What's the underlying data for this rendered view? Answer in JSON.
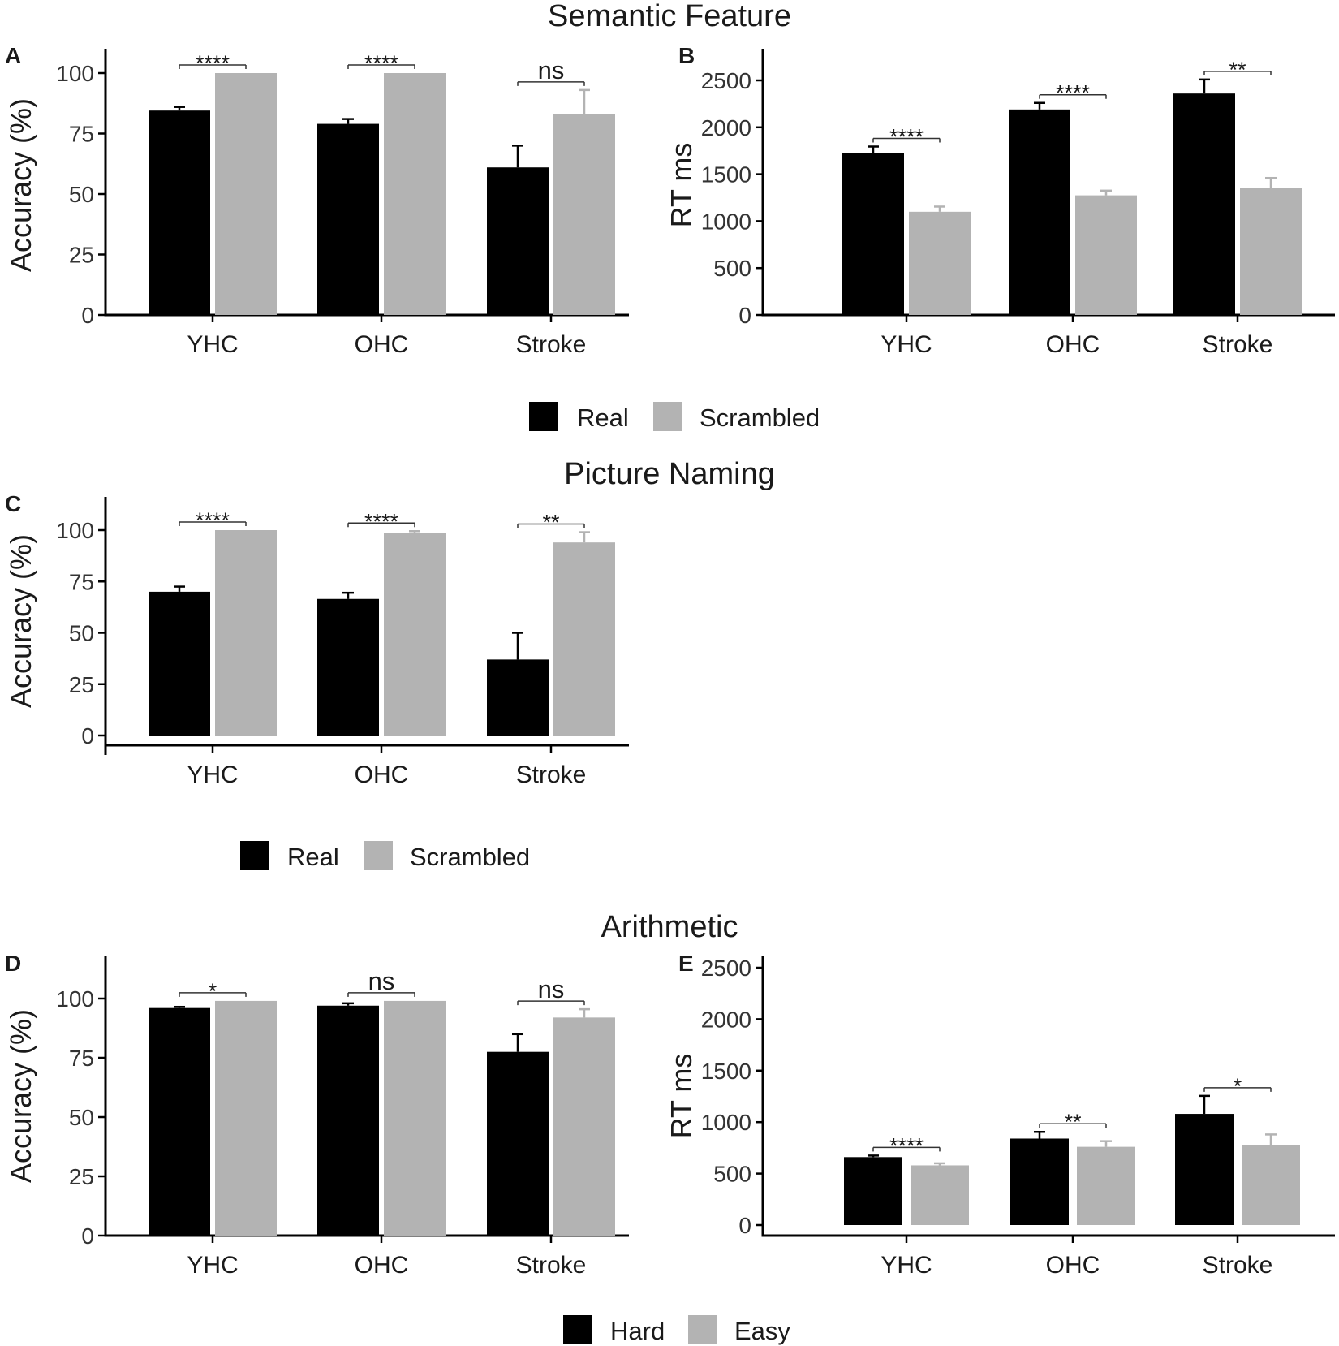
{
  "figure": {
    "sections": [
      "Semantic Feature",
      "Picture Naming",
      "Arithmetic"
    ],
    "legends": [
      {
        "id": "leg-semantic",
        "entries": [
          "Real",
          "Scrambled"
        ]
      },
      {
        "id": "leg-picture",
        "entries": [
          "Real",
          "Scrambled"
        ]
      },
      {
        "id": "leg-arith",
        "entries": [
          "Hard",
          "Easy"
        ]
      }
    ],
    "colors": {
      "dark": "#000000",
      "light": "#b3b3b3",
      "axis": "#000000"
    }
  },
  "chart_data": [
    {
      "panel": "A",
      "type": "bar",
      "title": "Semantic Feature",
      "ylabel": "Accuracy (%)",
      "categories": [
        "YHC",
        "OHC",
        "Stroke"
      ],
      "ylim": [
        0,
        110
      ],
      "yticks": [
        0,
        25,
        50,
        75,
        100
      ],
      "series": [
        {
          "name": "Real",
          "values": [
            84.5,
            79,
            61
          ],
          "errors": [
            1.5,
            2,
            9
          ]
        },
        {
          "name": "Scrambled",
          "values": [
            100,
            100,
            83
          ],
          "errors": [
            0,
            0,
            10
          ]
        }
      ],
      "significance": [
        "****",
        "****",
        "ns"
      ]
    },
    {
      "panel": "B",
      "type": "bar",
      "title": "Semantic Feature",
      "ylabel": "RT ms",
      "categories": [
        "YHC",
        "OHC",
        "Stroke"
      ],
      "ylim": [
        0,
        2800
      ],
      "yticks": [
        0,
        500,
        1000,
        1500,
        2000,
        2500
      ],
      "series": [
        {
          "name": "Real",
          "values": [
            1725,
            2190,
            2360
          ],
          "errors": [
            70,
            70,
            150
          ]
        },
        {
          "name": "Scrambled",
          "values": [
            1100,
            1275,
            1350
          ],
          "errors": [
            55,
            50,
            110
          ]
        }
      ],
      "significance": [
        "****",
        "****",
        "**"
      ]
    },
    {
      "panel": "C",
      "type": "bar",
      "title": "Picture Naming",
      "ylabel": "Accuracy (%)",
      "categories": [
        "YHC",
        "OHC",
        "Stroke"
      ],
      "ylim": [
        0,
        110
      ],
      "yticks": [
        0,
        25,
        50,
        75,
        100
      ],
      "series": [
        {
          "name": "Real",
          "values": [
            70,
            66.5,
            37
          ],
          "errors": [
            2.5,
            3,
            13
          ]
        },
        {
          "name": "Scrambled",
          "values": [
            100,
            98.5,
            94
          ],
          "errors": [
            0,
            1,
            5
          ]
        }
      ],
      "significance": [
        "****",
        "****",
        "**"
      ]
    },
    {
      "panel": "D",
      "type": "bar",
      "title": "Arithmetic",
      "ylabel": "Accuracy (%)",
      "categories": [
        "YHC",
        "OHC",
        "Stroke"
      ],
      "ylim": [
        0,
        110
      ],
      "yticks": [
        0,
        25,
        50,
        75,
        100
      ],
      "series": [
        {
          "name": "Hard",
          "values": [
            96,
            97,
            77.5
          ],
          "errors": [
            0.5,
            1,
            7.5
          ]
        },
        {
          "name": "Easy",
          "values": [
            99,
            99,
            92
          ],
          "errors": [
            0,
            0,
            3.5
          ]
        }
      ],
      "significance": [
        "*",
        "ns",
        "ns"
      ]
    },
    {
      "panel": "E",
      "type": "bar",
      "title": "Arithmetic",
      "ylabel": "RT ms",
      "categories": [
        "YHC",
        "OHC",
        "Stroke"
      ],
      "ylim": [
        0,
        2700
      ],
      "yticks": [
        0,
        500,
        1000,
        1500,
        2000,
        2500
      ],
      "series": [
        {
          "name": "Hard",
          "values": [
            660,
            840,
            1080
          ],
          "errors": [
            15,
            65,
            175
          ]
        },
        {
          "name": "Easy",
          "values": [
            580,
            760,
            775
          ],
          "errors": [
            20,
            55,
            105
          ]
        }
      ],
      "significance": [
        "****",
        "**",
        "*"
      ]
    }
  ]
}
